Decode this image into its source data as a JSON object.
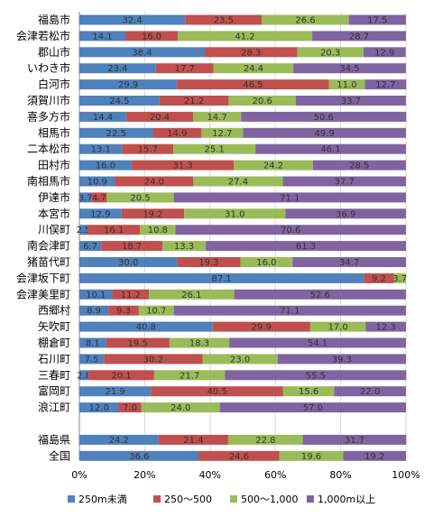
{
  "chart_data": {
    "type": "bar",
    "orientation": "horizontal",
    "stacked": "percent",
    "categories": [
      "福島市",
      "会津若松市",
      "郡山市",
      "いわき市",
      "白河市",
      "須賀川市",
      "喜多方市",
      "相馬市",
      "二本松市",
      "田村市",
      "南相馬市",
      "伊達市",
      "本宮市",
      "川俣町",
      "南会津町",
      "猪苗代町",
      "会津坂下町",
      "会津美里町",
      "西郷村",
      "矢吹町",
      "棚倉町",
      "石川町",
      "三春町",
      "富岡町",
      "浪江町",
      "",
      "福島県",
      "全国"
    ],
    "series": [
      {
        "name": "250m未満",
        "color": "#4F81BD",
        "values": [
          32.4,
          14.1,
          38.4,
          23.4,
          29.9,
          24.5,
          14.4,
          22.5,
          13.1,
          16.0,
          10.9,
          3.7,
          12.9,
          2.5,
          6.7,
          30.0,
          87.1,
          10.1,
          8.9,
          40.8,
          8.1,
          7.5,
          2.8,
          21.9,
          12.0,
          null,
          24.2,
          36.6
        ]
      },
      {
        "name": "250～500",
        "color": "#C0504D",
        "values": [
          23.5,
          16.0,
          28.3,
          17.7,
          46.5,
          21.2,
          20.4,
          14.9,
          15.7,
          31.3,
          24.0,
          4.7,
          19.2,
          16.1,
          18.7,
          19.3,
          9.2,
          11.2,
          9.3,
          29.9,
          19.5,
          30.2,
          20.1,
          40.5,
          7.0,
          null,
          21.4,
          24.6
        ]
      },
      {
        "name": "500～1,000",
        "color": "#9BBB59",
        "values": [
          26.6,
          41.2,
          20.3,
          24.4,
          11.0,
          20.6,
          14.7,
          12.7,
          25.1,
          24.2,
          27.4,
          20.5,
          31.0,
          10.8,
          13.3,
          16.0,
          3.7,
          26.1,
          10.7,
          17.0,
          18.3,
          23.0,
          21.7,
          15.6,
          24.0,
          null,
          22.8,
          19.6
        ]
      },
      {
        "name": "1,000m以上",
        "color": "#8064A2",
        "values": [
          17.5,
          28.7,
          12.9,
          34.5,
          12.7,
          33.7,
          50.6,
          49.9,
          46.1,
          28.5,
          37.7,
          71.1,
          36.9,
          70.6,
          61.3,
          34.7,
          null,
          52.6,
          71.1,
          12.3,
          54.1,
          39.3,
          55.5,
          22.0,
          57.0,
          null,
          31.7,
          19.2
        ]
      }
    ],
    "xlim": [
      0,
      100
    ],
    "x_ticks": [
      "0%",
      "20%",
      "40%",
      "60%",
      "80%",
      "100%"
    ],
    "grid": true,
    "legend_position": "bottom"
  }
}
